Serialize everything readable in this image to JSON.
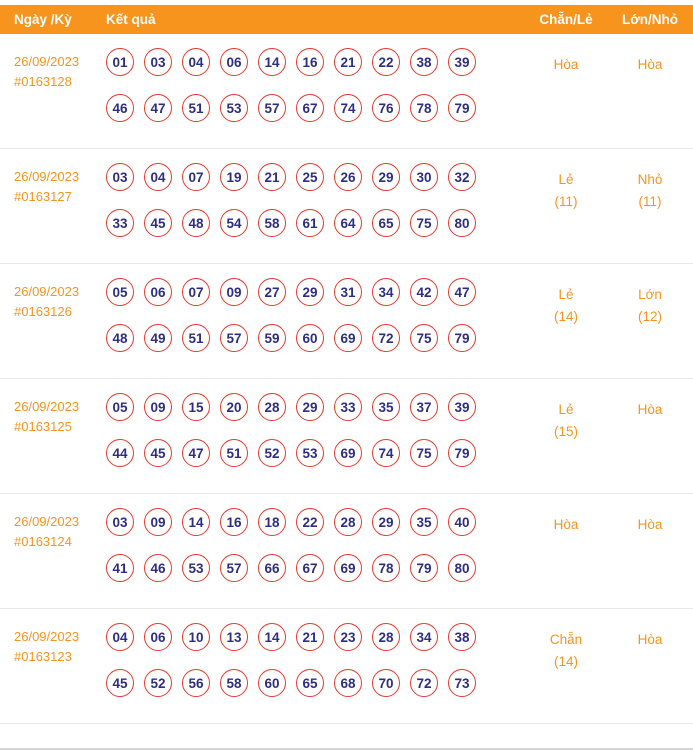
{
  "header": {
    "date_label": "Ngày /Kỳ",
    "result_label": "Kết quả",
    "even_odd_label": "Chẵn/Lẻ",
    "big_small_label": "Lớn/Nhỏ"
  },
  "rows": [
    {
      "date": "26/09/2023",
      "draw_id": "#0163128",
      "numbers_line1": [
        "01",
        "03",
        "04",
        "06",
        "14",
        "16",
        "21",
        "22",
        "38",
        "39"
      ],
      "numbers_line2": [
        "46",
        "47",
        "51",
        "53",
        "57",
        "67",
        "74",
        "76",
        "78",
        "79"
      ],
      "even_odd": {
        "value": "Hòa",
        "count": ""
      },
      "big_small": {
        "value": "Hòa",
        "count": ""
      }
    },
    {
      "date": "26/09/2023",
      "draw_id": "#0163127",
      "numbers_line1": [
        "03",
        "04",
        "07",
        "19",
        "21",
        "25",
        "26",
        "29",
        "30",
        "32"
      ],
      "numbers_line2": [
        "33",
        "45",
        "48",
        "54",
        "58",
        "61",
        "64",
        "65",
        "75",
        "80"
      ],
      "even_odd": {
        "value": "Lẻ",
        "count": "(11)"
      },
      "big_small": {
        "value": "Nhỏ",
        "count": "(11)"
      }
    },
    {
      "date": "26/09/2023",
      "draw_id": "#0163126",
      "numbers_line1": [
        "05",
        "06",
        "07",
        "09",
        "27",
        "29",
        "31",
        "34",
        "42",
        "47"
      ],
      "numbers_line2": [
        "48",
        "49",
        "51",
        "57",
        "59",
        "60",
        "69",
        "72",
        "75",
        "79"
      ],
      "even_odd": {
        "value": "Lẻ",
        "count": "(14)"
      },
      "big_small": {
        "value": "Lớn",
        "count": "(12)"
      }
    },
    {
      "date": "26/09/2023",
      "draw_id": "#0163125",
      "numbers_line1": [
        "05",
        "09",
        "15",
        "20",
        "28",
        "29",
        "33",
        "35",
        "37",
        "39"
      ],
      "numbers_line2": [
        "44",
        "45",
        "47",
        "51",
        "52",
        "53",
        "69",
        "74",
        "75",
        "79"
      ],
      "even_odd": {
        "value": "Lẻ",
        "count": "(15)"
      },
      "big_small": {
        "value": "Hòa",
        "count": ""
      }
    },
    {
      "date": "26/09/2023",
      "draw_id": "#0163124",
      "numbers_line1": [
        "03",
        "09",
        "14",
        "16",
        "18",
        "22",
        "28",
        "29",
        "35",
        "40"
      ],
      "numbers_line2": [
        "41",
        "46",
        "53",
        "57",
        "66",
        "67",
        "69",
        "78",
        "79",
        "80"
      ],
      "even_odd": {
        "value": "Hòa",
        "count": ""
      },
      "big_small": {
        "value": "Hòa",
        "count": ""
      }
    },
    {
      "date": "26/09/2023",
      "draw_id": "#0163123",
      "numbers_line1": [
        "04",
        "06",
        "10",
        "13",
        "14",
        "21",
        "23",
        "28",
        "34",
        "38"
      ],
      "numbers_line2": [
        "45",
        "52",
        "56",
        "58",
        "60",
        "65",
        "68",
        "70",
        "72",
        "73"
      ],
      "even_odd": {
        "value": "Chẵn",
        "count": "(14)"
      },
      "big_small": {
        "value": "Hòa",
        "count": ""
      }
    }
  ],
  "colors": {
    "accent_orange": "#F7941E",
    "ball_border_red": "#E23B2E",
    "ball_number_navy": "#2D2E83"
  }
}
